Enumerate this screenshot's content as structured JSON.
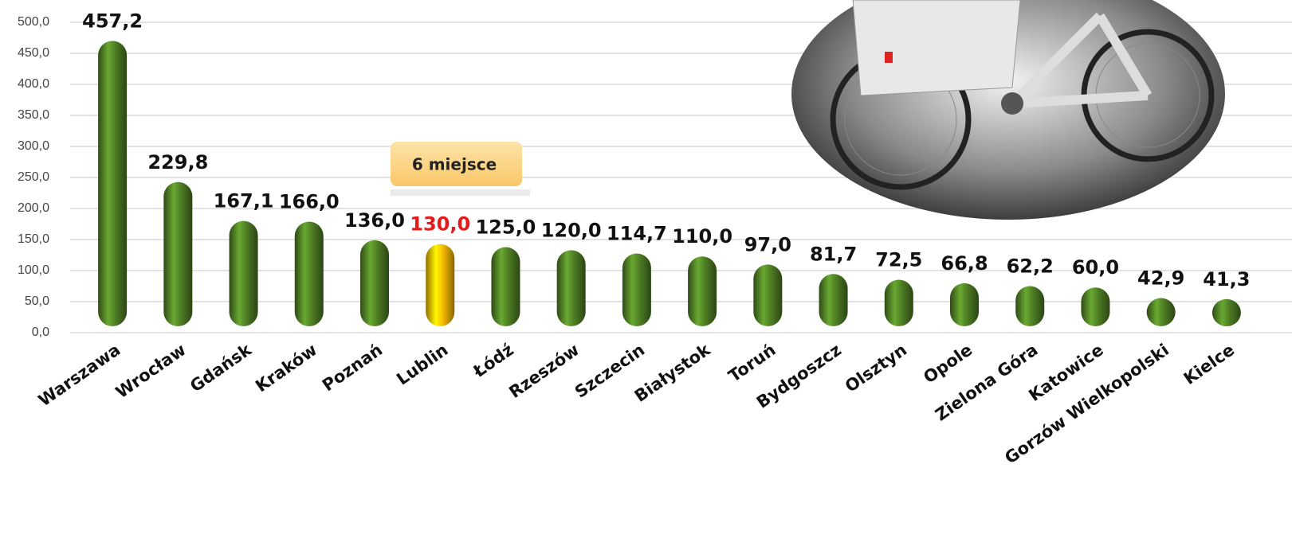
{
  "chart_data": {
    "type": "bar",
    "categories": [
      "Warszawa",
      "Wrocław",
      "Gdańsk",
      "Kraków",
      "Poznań",
      "Lublin",
      "Łódź",
      "Rzeszów",
      "Szczecin",
      "Białystok",
      "Toruń",
      "Bydgoszcz",
      "Olsztyn",
      "Opole",
      "Zielona Góra",
      "Katowice",
      "Gorzów Wielkopolski",
      "Kielce"
    ],
    "values": [
      457.2,
      229.8,
      167.1,
      166.0,
      136.0,
      130.0,
      125.0,
      120.0,
      114.7,
      110.0,
      97.0,
      81.7,
      72.5,
      66.8,
      62.2,
      60.0,
      42.9,
      41.3
    ],
    "value_labels": [
      "457,2",
      "229,8",
      "167,1",
      "166,0",
      "136,0",
      "130,0",
      "125,0",
      "120,0",
      "114,7",
      "110,0",
      "97,0",
      "81,7",
      "72,5",
      "66,8",
      "62,2",
      "60,0",
      "42,9",
      "41,3"
    ],
    "colors": [
      "#4e7d24",
      "#4e7d24",
      "#4e7d24",
      "#4e7d24",
      "#4e7d24",
      "#f5b800",
      "#4e7d24",
      "#4e7d24",
      "#4e7d24",
      "#4e7d24",
      "#4e7d24",
      "#4e7d24",
      "#4e7d24",
      "#4e7d24",
      "#4e7d24",
      "#4e7d24",
      "#4e7d24",
      "#4e7d24"
    ],
    "value_label_colors": [
      "#111111",
      "#111111",
      "#111111",
      "#111111",
      "#111111",
      "#e31b1b",
      "#111111",
      "#111111",
      "#111111",
      "#111111",
      "#111111",
      "#111111",
      "#111111",
      "#111111",
      "#111111",
      "#111111",
      "#111111",
      "#111111"
    ],
    "ylim": [
      0,
      500
    ],
    "yticks": [
      {
        "value": 0,
        "label": "0,0"
      },
      {
        "value": 50,
        "label": "50,0"
      },
      {
        "value": 100,
        "label": "100,0"
      },
      {
        "value": 150,
        "label": "150,0"
      },
      {
        "value": 200,
        "label": "200,0"
      },
      {
        "value": 250,
        "label": "250,0"
      },
      {
        "value": 300,
        "label": "300,0"
      },
      {
        "value": 350,
        "label": "350,0"
      },
      {
        "value": 400,
        "label": "400,0"
      },
      {
        "value": 450,
        "label": "450,0"
      },
      {
        "value": 500,
        "label": "500,0"
      }
    ],
    "grid": true,
    "annotation": "6 miejsce"
  }
}
